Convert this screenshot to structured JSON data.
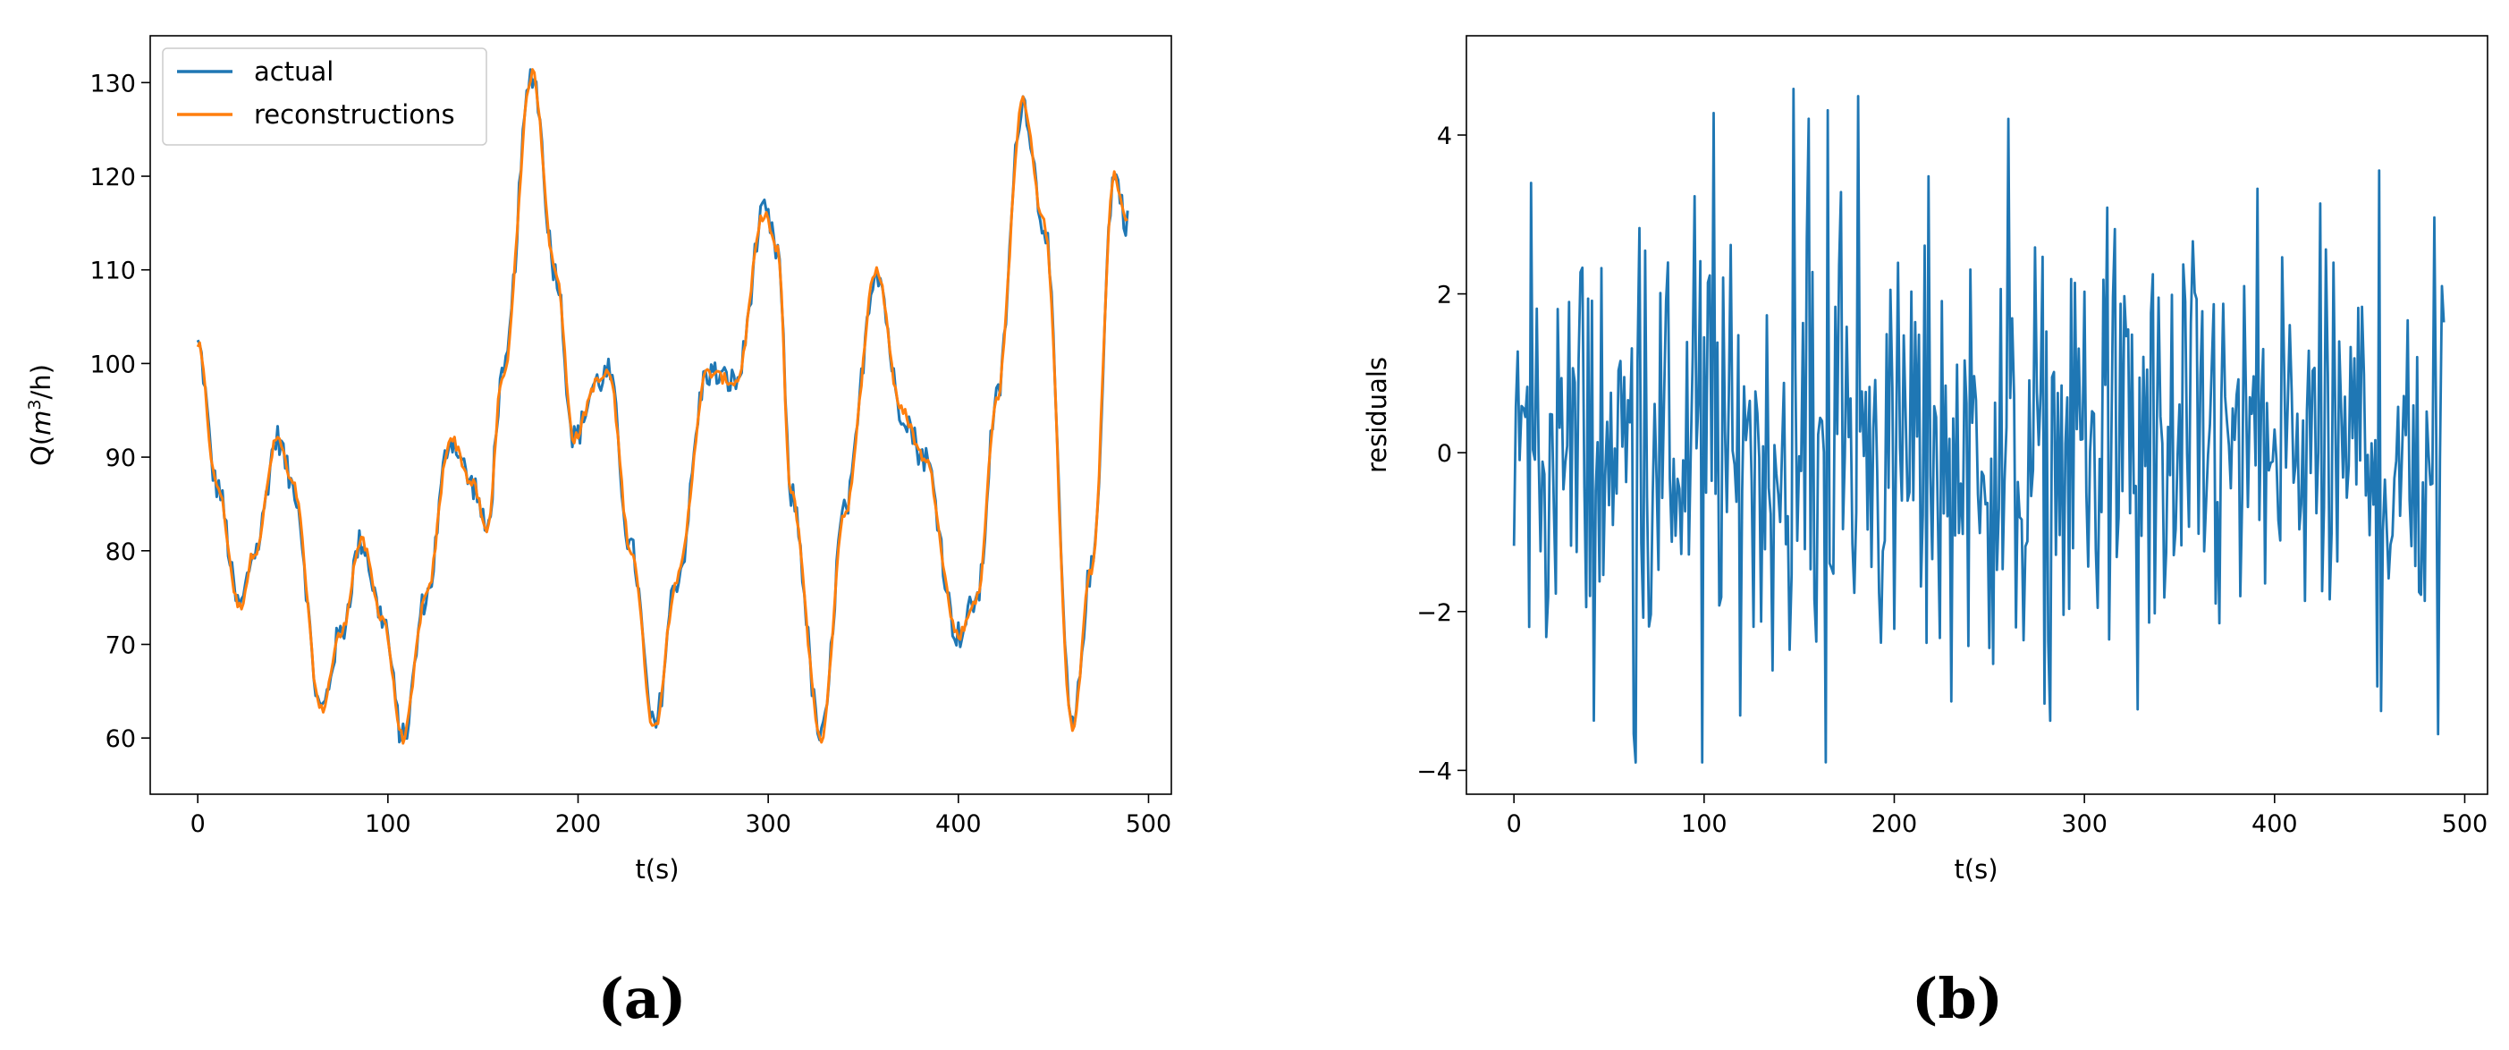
{
  "chart_data": [
    {
      "panel": "(a)",
      "type": "line",
      "xlabel": "t(s)",
      "ylabel_prefix": "Q(",
      "ylabel_var": "m",
      "ylabel_exp": "3",
      "ylabel_suffix": "/h)",
      "xlim": [
        -25,
        512
      ],
      "ylim": [
        54,
        135
      ],
      "xticks": [
        0,
        100,
        200,
        300,
        400,
        500
      ],
      "yticks": [
        60,
        70,
        80,
        90,
        100,
        110,
        120,
        130
      ],
      "grid": false,
      "legend_position": "upper-left",
      "colors": {
        "actual": "#1f77b4",
        "reconstructions": "#ff7f0e"
      },
      "series": [
        {
          "name": "actual"
        },
        {
          "name": "reconstructions"
        }
      ],
      "keypoints": {
        "x": [
          0,
          10,
          22,
          30,
          42,
          50,
          65,
          75,
          86,
          97,
          108,
          120,
          133,
          145,
          152,
          160,
          176,
          188,
          198,
          210,
          216,
          228,
          240,
          252,
          268,
          283,
          298,
          305,
          312,
          328,
          340,
          357,
          370,
          382,
          400,
          410,
          420,
          434,
          445,
          460,
          470,
          482,
          489
        ],
        "y": [
          102,
          87,
          74,
          80,
          92,
          87,
          63,
          71,
          81,
          73,
          60,
          75,
          92,
          87,
          82,
          98,
          131,
          110,
          92,
          98,
          99,
          80,
          61,
          77,
          99,
          98,
          116,
          112,
          86,
          60,
          84,
          110,
          95,
          90,
          71,
          75,
          96,
          128,
          115,
          61,
          78,
          120,
          115
        ]
      }
    },
    {
      "panel": "(b)",
      "type": "line",
      "xlabel": "t(s)",
      "ylabel": "residuals",
      "xlim": [
        -25,
        512
      ],
      "ylim": [
        -4.3,
        5.25
      ],
      "xticks": [
        0,
        100,
        200,
        300,
        400,
        500
      ],
      "yticks": [
        -4,
        -2,
        0,
        2,
        4
      ],
      "grid": false,
      "colors": {
        "residuals": "#1f77b4"
      },
      "n_points": 490,
      "value_range": [
        -3.9,
        4.8
      ]
    }
  ],
  "captions": [
    "(a)",
    "(b)"
  ]
}
